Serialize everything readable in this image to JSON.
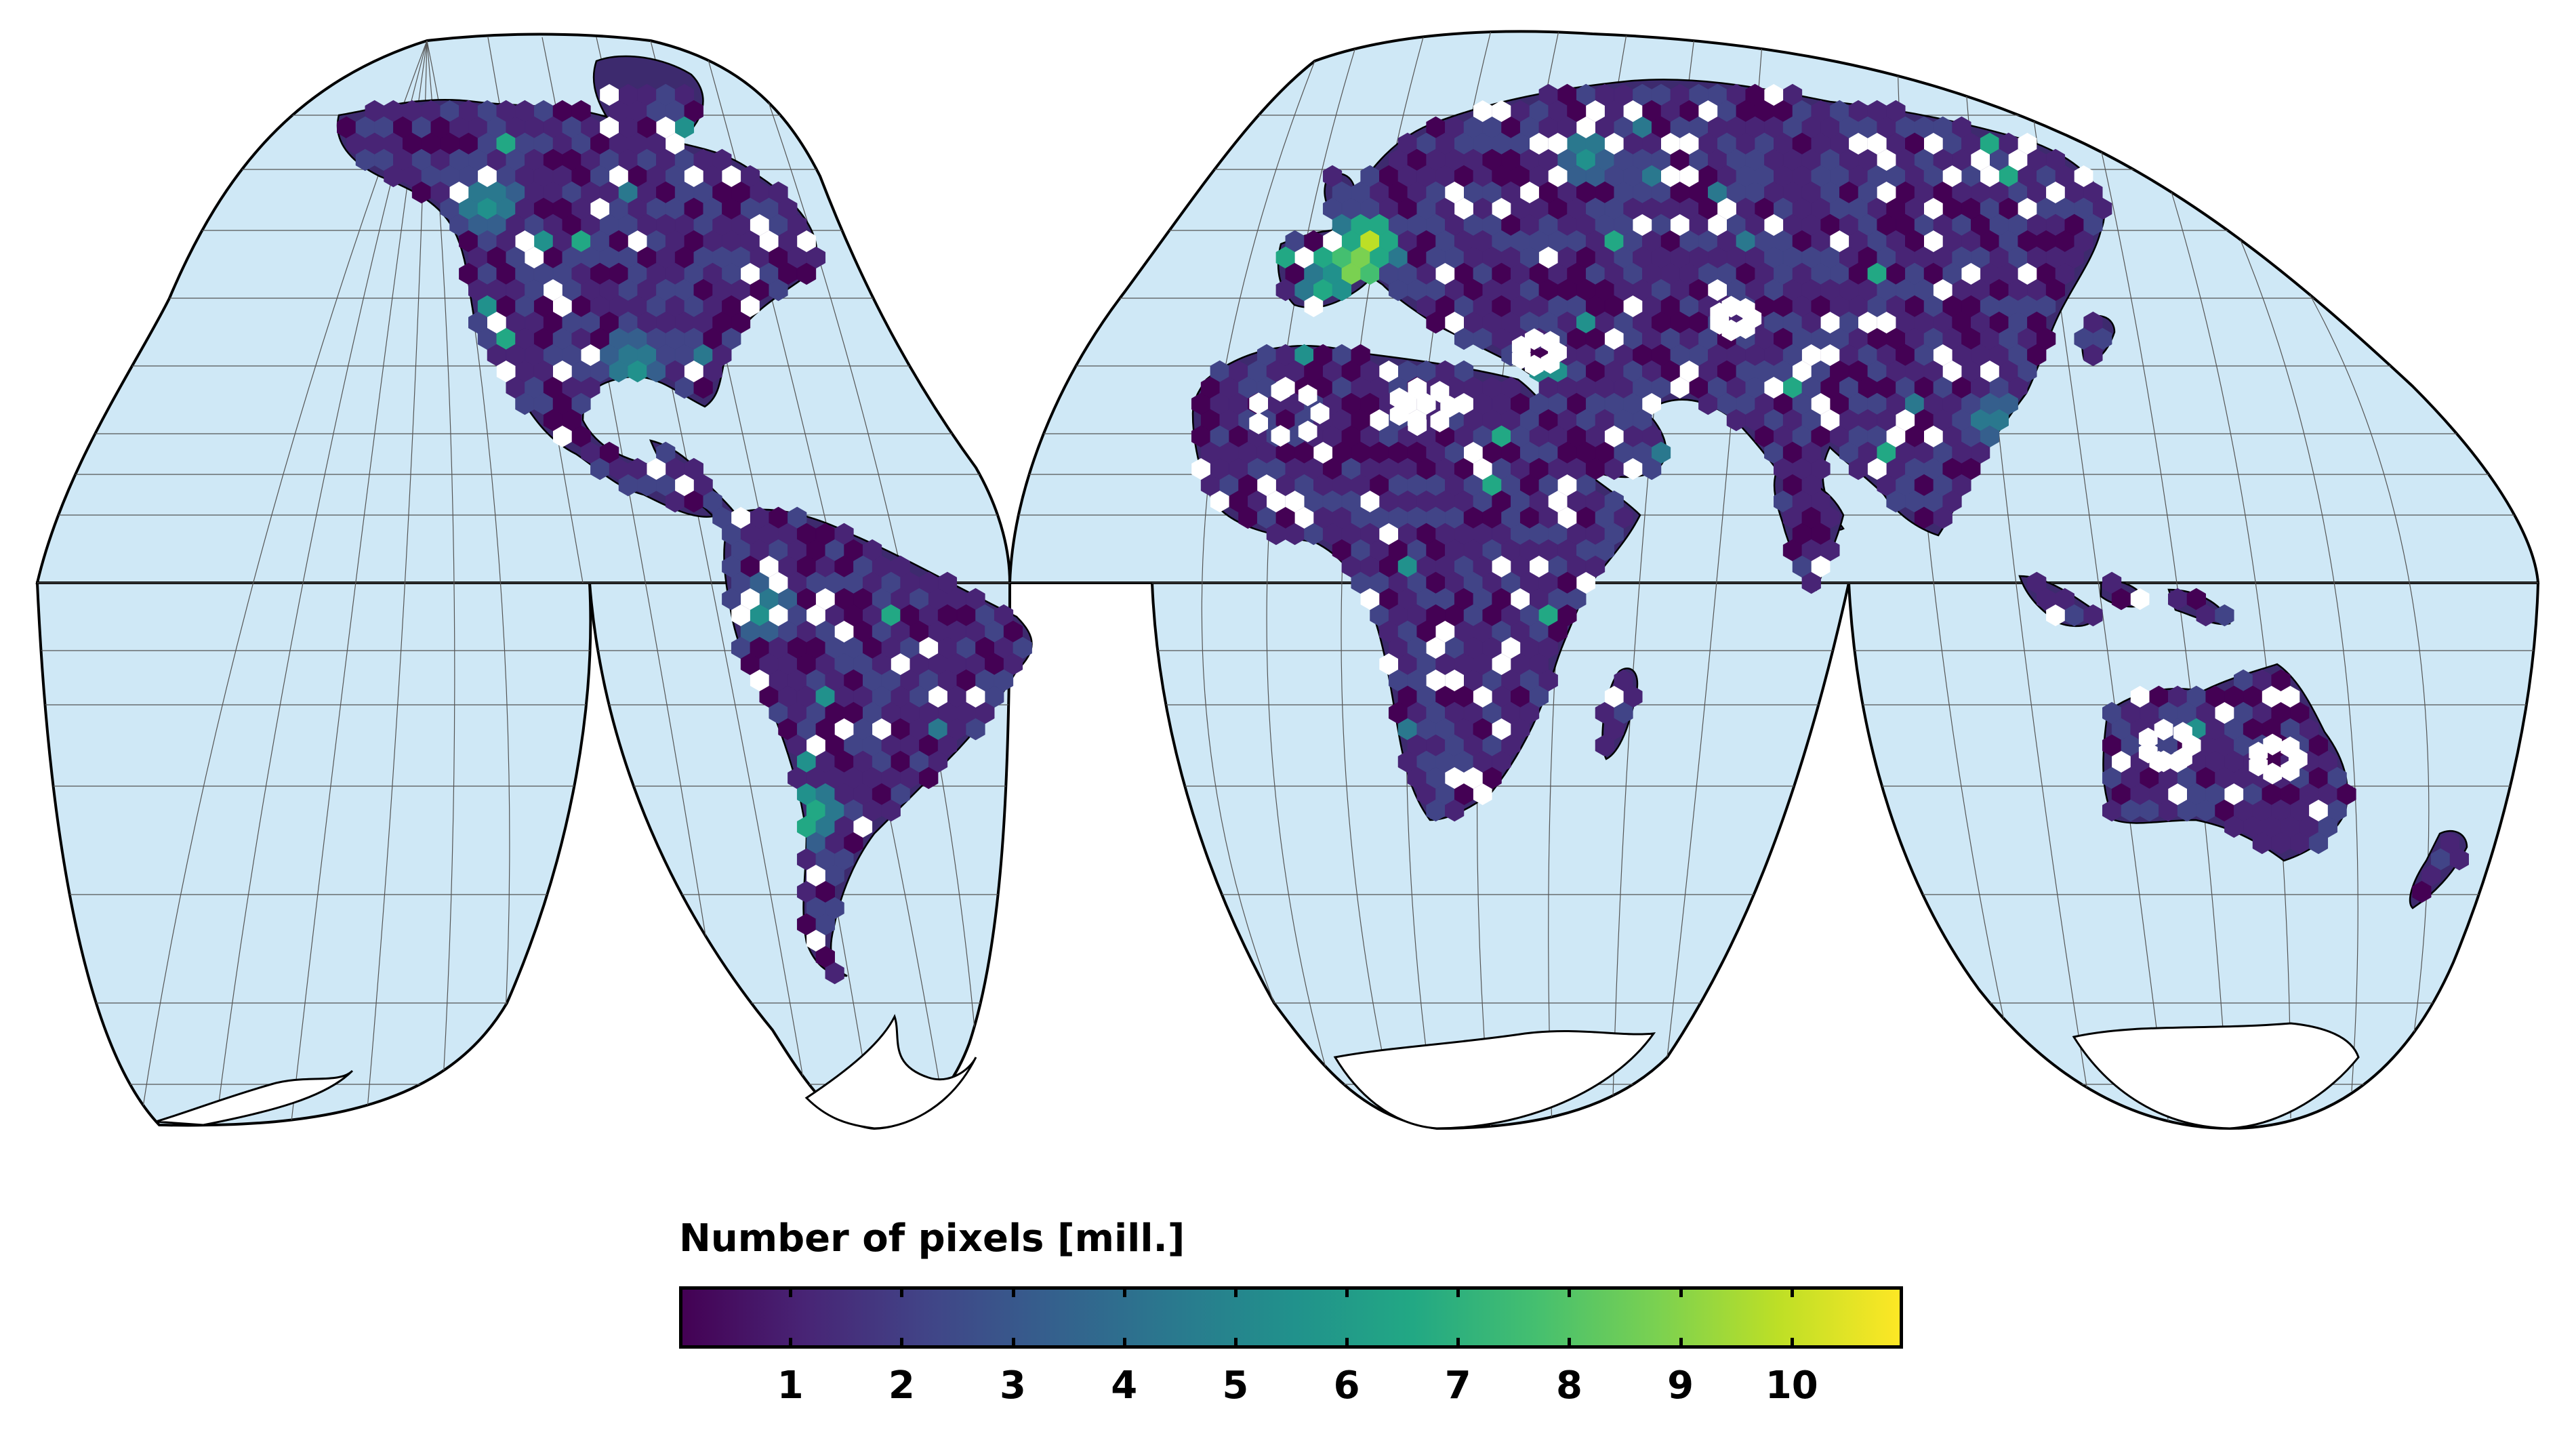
{
  "map": {
    "projection": "interrupted goode homolosine",
    "ocean_color": "#cfe8f6",
    "land_nodata_color": "#ffffff",
    "grid": true,
    "coastlines": true,
    "country_borders": true,
    "data_layer": "hexagonal bins of pixel counts"
  },
  "colorbar": {
    "title": "Number of pixels [mill.]",
    "colormap": "viridis",
    "min": 0,
    "max": 11,
    "ticks": [
      "1",
      "2",
      "3",
      "4",
      "5",
      "6",
      "7",
      "8",
      "9",
      "10"
    ],
    "tick_values": [
      1,
      2,
      3,
      4,
      5,
      6,
      7,
      8,
      9,
      10
    ],
    "stops": [
      "#440154",
      "#482475",
      "#414487",
      "#355f8d",
      "#2a788e",
      "#21918c",
      "#22a884",
      "#44bf70",
      "#7ad151",
      "#bddf26",
      "#fde725"
    ]
  }
}
